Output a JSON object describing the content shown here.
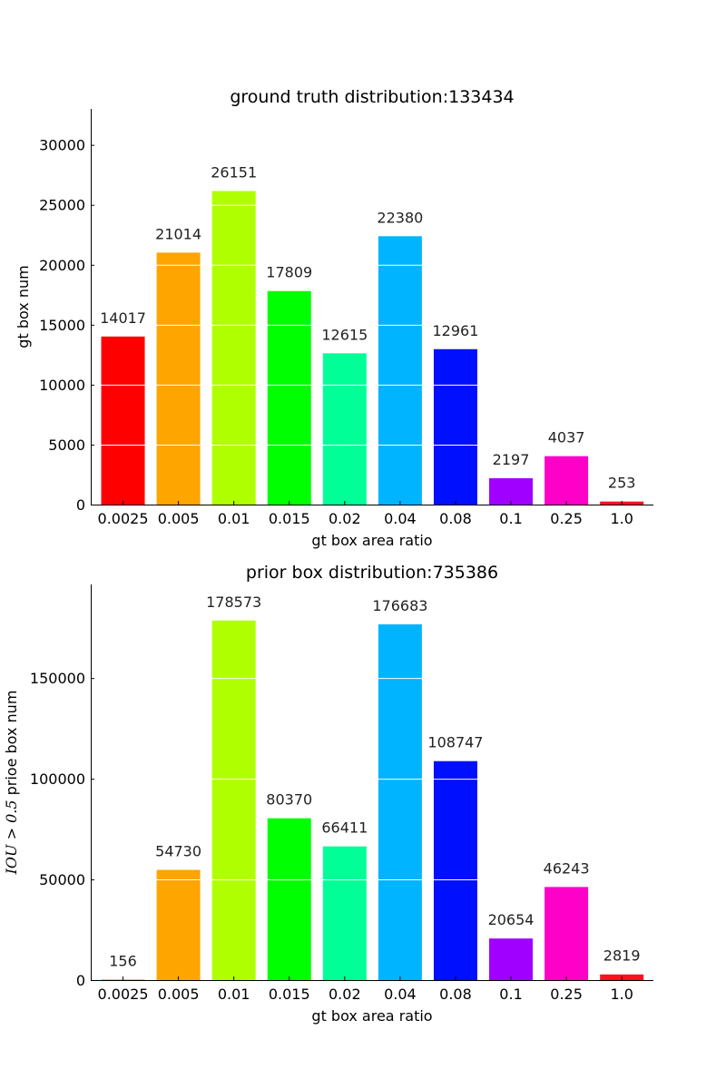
{
  "chart_data": [
    {
      "type": "bar",
      "title": "ground truth distribution:133434",
      "xlabel": "gt box area ratio",
      "ylabel": "gt box num",
      "categories": [
        "0.0025",
        "0.005",
        "0.01",
        "0.015",
        "0.02",
        "0.04",
        "0.08",
        "0.1",
        "0.25",
        "1.0"
      ],
      "values": [
        14017,
        21014,
        26151,
        17809,
        12615,
        22380,
        12961,
        2197,
        4037,
        253
      ],
      "value_labels": [
        "14017",
        "21014",
        "26151",
        "17809",
        "12615",
        "22380",
        "12961",
        "2197",
        "4037",
        "253"
      ],
      "colors": [
        "#ff0000",
        "#ffa500",
        "#b0ff00",
        "#00ff00",
        "#00ff96",
        "#00b4ff",
        "#0010ff",
        "#a000ff",
        "#ff00c8",
        "#ff1020"
      ],
      "ylim": [
        0,
        33000
      ],
      "yticks": [
        0,
        5000,
        10000,
        15000,
        20000,
        25000,
        30000
      ],
      "ytick_labels": [
        "0",
        "5000",
        "10000",
        "15000",
        "20000",
        "25000",
        "30000"
      ],
      "grid": true
    },
    {
      "type": "bar",
      "title": "prior box distribution:735386",
      "xlabel": "gt box area ratio",
      "ylabel_math": "IOU > 0.5",
      "ylabel": " prioe box num",
      "categories": [
        "0.0025",
        "0.005",
        "0.01",
        "0.015",
        "0.02",
        "0.04",
        "0.08",
        "0.1",
        "0.25",
        "1.0"
      ],
      "values": [
        156,
        54730,
        178573,
        80370,
        66411,
        176683,
        108747,
        20654,
        46243,
        2819
      ],
      "value_labels": [
        "156",
        "54730",
        "178573",
        "80370",
        "66411",
        "176683",
        "108747",
        "20654",
        "46243",
        "2819"
      ],
      "colors": [
        "#ff0000",
        "#ffa500",
        "#b0ff00",
        "#00ff00",
        "#00ff96",
        "#00b4ff",
        "#0010ff",
        "#a000ff",
        "#ff00c8",
        "#ff1020"
      ],
      "ylim": [
        0,
        196500
      ],
      "yticks": [
        0,
        50000,
        100000,
        150000
      ],
      "ytick_labels": [
        "0",
        "50000",
        "100000",
        "150000"
      ],
      "grid": true
    }
  ]
}
